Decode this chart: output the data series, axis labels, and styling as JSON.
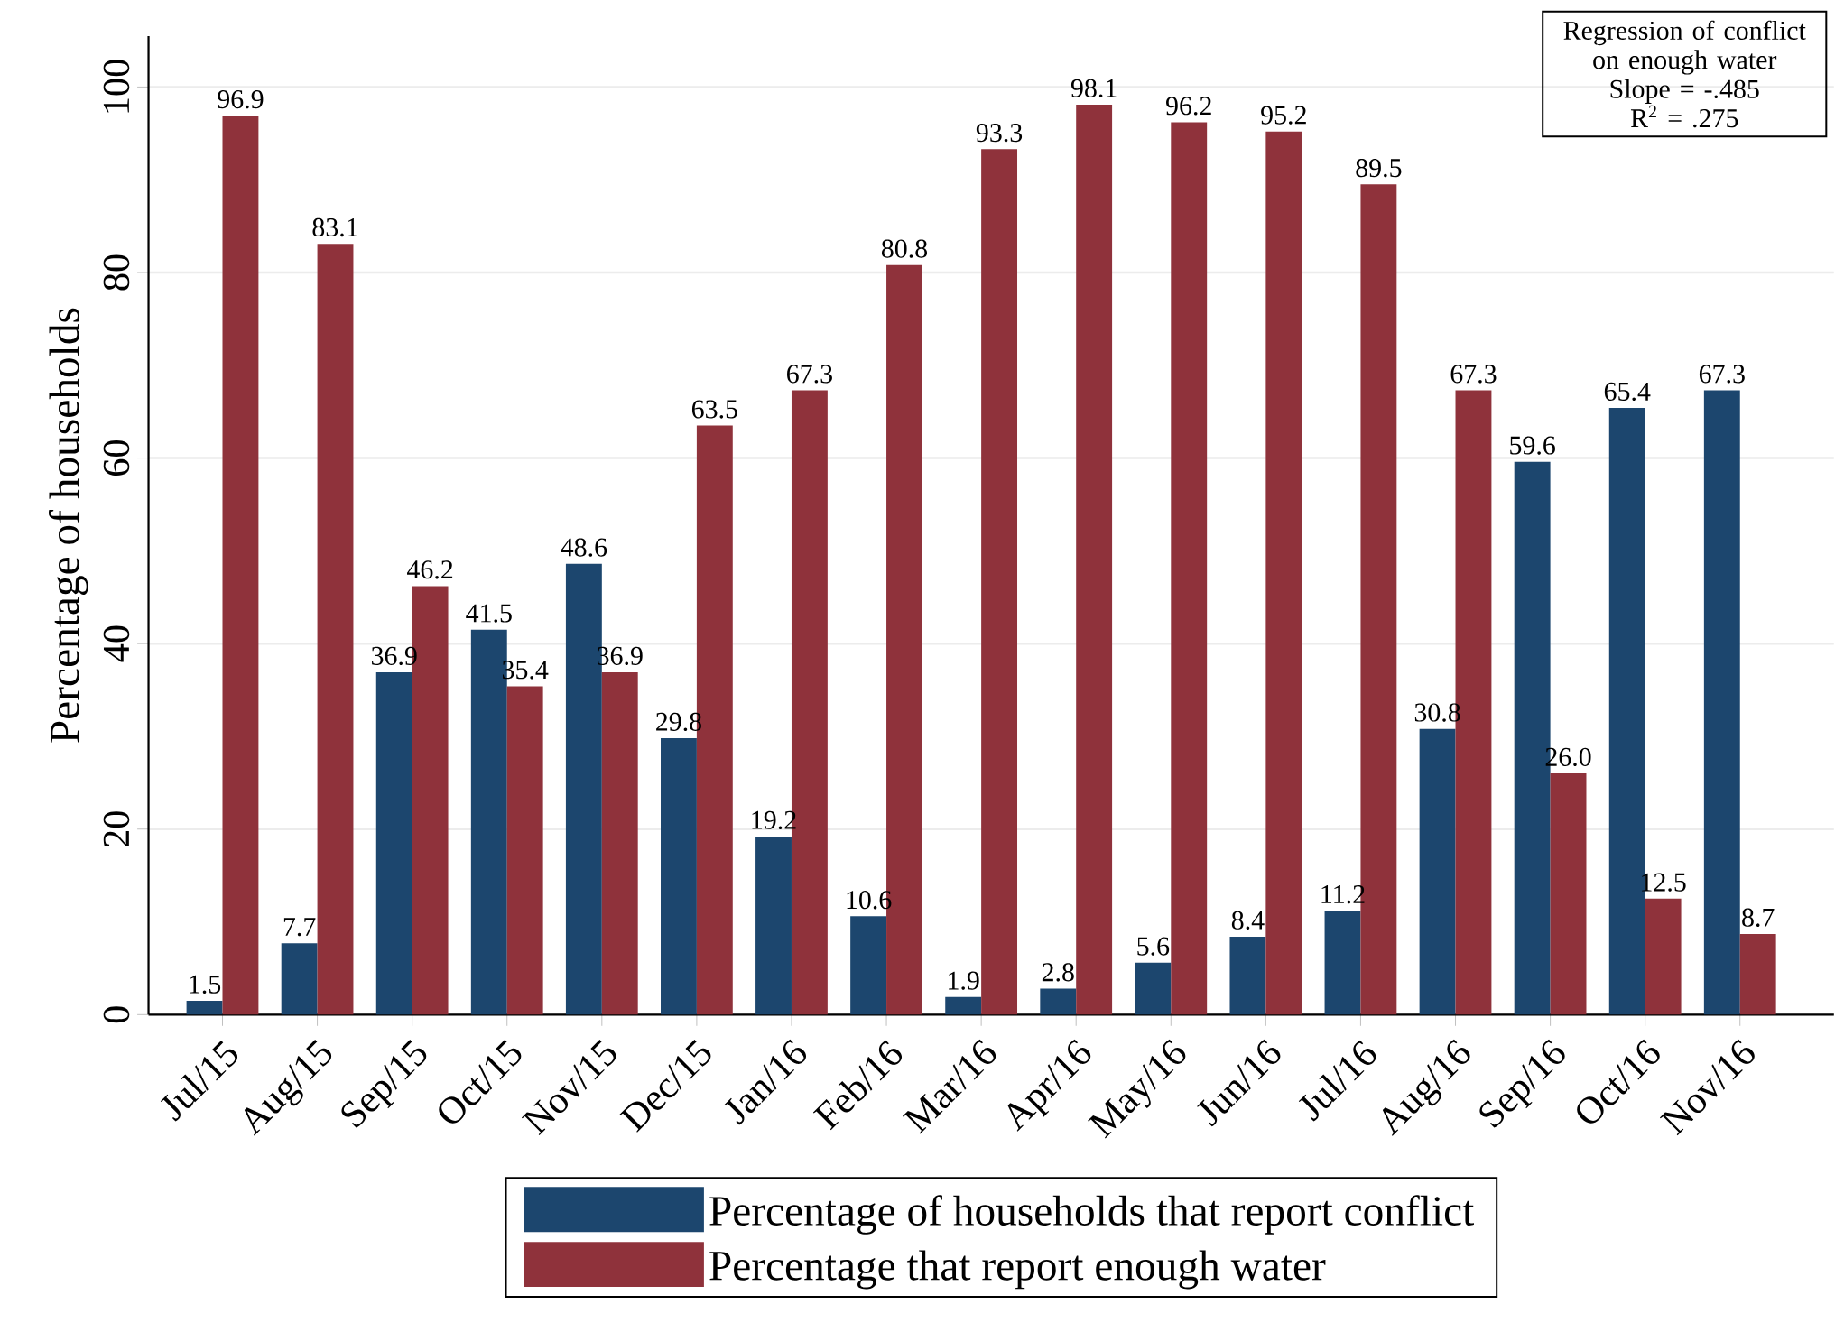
{
  "chart_data": {
    "type": "bar",
    "ylabel": "Percentage of households",
    "categories": [
      "Jul/15",
      "Aug/15",
      "Sep/15",
      "Oct/15",
      "Nov/15",
      "Dec/15",
      "Jan/16",
      "Feb/16",
      "Mar/16",
      "Apr/16",
      "May/16",
      "Jun/16",
      "Jul/16",
      "Aug/16",
      "Sep/16",
      "Oct/16",
      "Nov/16"
    ],
    "series": [
      {
        "name": "Percentage of households that report conflict",
        "color": "#1c466e",
        "values": [
          1.5,
          7.7,
          36.9,
          41.5,
          48.6,
          29.8,
          19.2,
          10.6,
          1.9,
          2.8,
          5.6,
          8.4,
          11.2,
          30.8,
          59.6,
          65.4,
          67.3
        ],
        "value_labels": [
          "1.5",
          "7.7",
          "36.9",
          "41.5",
          "48.6",
          "29.8",
          "19.2",
          "10.6",
          "1.9",
          "2.8",
          "5.6",
          "8.4",
          "11.2",
          "30.8",
          "59.6",
          "65.4",
          "67.3"
        ]
      },
      {
        "name": "Percentage that report enough water",
        "color": "#8f323b",
        "values": [
          96.9,
          83.1,
          46.2,
          35.4,
          36.9,
          63.5,
          67.3,
          80.8,
          93.3,
          98.1,
          96.2,
          95.2,
          89.5,
          67.3,
          26.0,
          12.5,
          8.7
        ],
        "value_labels": [
          "96.9",
          "83.1",
          "46.2",
          "35.4",
          "36.9",
          "63.5",
          "67.3",
          "80.8",
          "93.3",
          "98.1",
          "96.2",
          "95.2",
          "89.5",
          "67.3",
          "26.0",
          "12.5",
          "8.7"
        ]
      }
    ],
    "ylim": [
      0,
      105.5
    ],
    "yticks": [
      0,
      20,
      40,
      60,
      80,
      100
    ],
    "grid": "y",
    "legend": "bottom",
    "annotations": [
      "Regression of conflict on enough water",
      "Slope = -.485",
      "R$^{2}$ = .275"
    ]
  }
}
